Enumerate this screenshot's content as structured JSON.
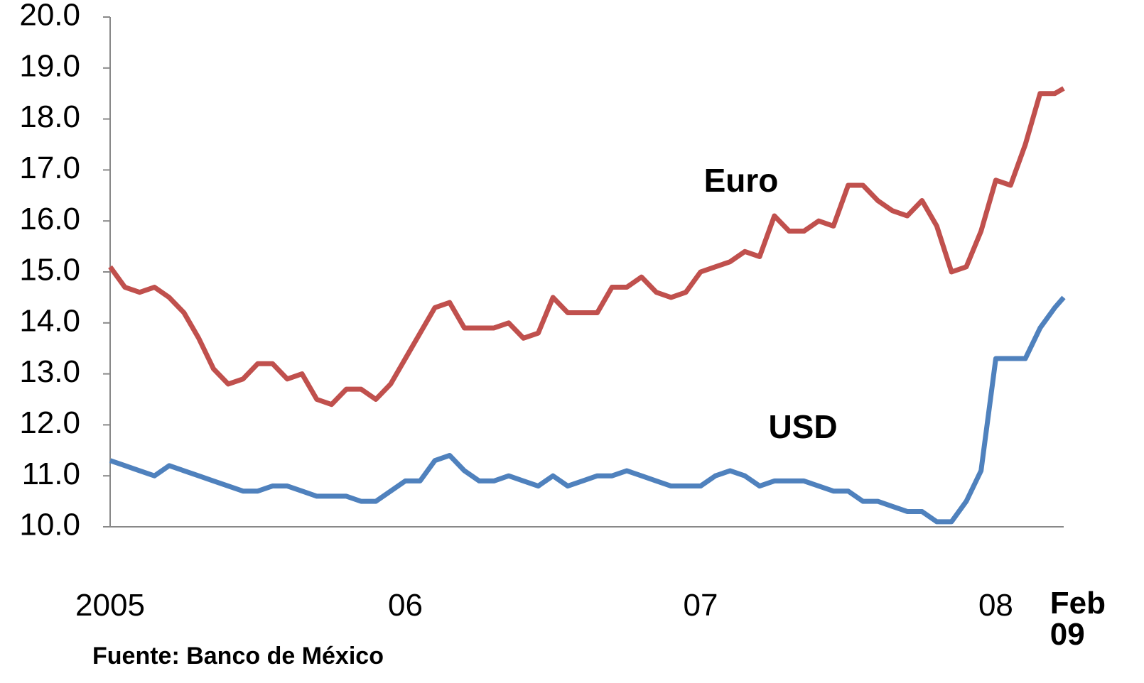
{
  "chart_data": {
    "type": "line",
    "x": [
      2005,
      2005.05,
      2005.1,
      2005.15,
      2005.2,
      2005.25,
      2005.3,
      2005.35,
      2005.4,
      2005.45,
      2005.5,
      2005.55,
      2005.6,
      2005.65,
      2005.7,
      2005.75,
      2005.8,
      2005.85,
      2005.9,
      2005.95,
      2006,
      2006.05,
      2006.1,
      2006.15,
      2006.2,
      2006.25,
      2006.3,
      2006.35,
      2006.4,
      2006.45,
      2006.5,
      2006.55,
      2006.6,
      2006.65,
      2006.7,
      2006.75,
      2006.8,
      2006.85,
      2006.9,
      2006.95,
      2007,
      2007.05,
      2007.1,
      2007.15,
      2007.2,
      2007.25,
      2007.3,
      2007.35,
      2007.4,
      2007.45,
      2007.5,
      2007.55,
      2007.6,
      2007.65,
      2007.7,
      2007.75,
      2007.8,
      2007.85,
      2007.9,
      2007.95,
      2008,
      2008.05,
      2008.1,
      2008.15,
      2008.2,
      2008.23
    ],
    "series": [
      {
        "name": "Euro",
        "color": "#c0504d",
        "values": [
          15.1,
          14.7,
          14.6,
          14.7,
          14.5,
          14.2,
          13.7,
          13.1,
          12.8,
          12.9,
          13.2,
          13.2,
          12.9,
          13.0,
          12.5,
          12.4,
          12.7,
          12.7,
          12.5,
          12.8,
          13.3,
          13.8,
          14.3,
          14.4,
          13.9,
          13.9,
          13.9,
          14.0,
          13.7,
          13.8,
          14.5,
          14.2,
          14.2,
          14.2,
          14.7,
          14.7,
          14.9,
          14.6,
          14.5,
          14.6,
          15.0,
          15.1,
          15.2,
          15.4,
          15.3,
          16.1,
          15.8,
          15.8,
          16.0,
          15.9,
          16.7,
          16.7,
          16.4,
          16.2,
          16.1,
          16.4,
          15.9,
          15.0,
          15.1,
          15.8,
          16.8,
          16.7,
          17.5,
          18.5,
          18.5,
          18.6
        ]
      },
      {
        "name": "USD",
        "color": "#4f81bd",
        "values": [
          11.3,
          11.2,
          11.1,
          11.0,
          11.2,
          11.1,
          11.0,
          10.9,
          10.8,
          10.7,
          10.7,
          10.8,
          10.8,
          10.7,
          10.6,
          10.6,
          10.6,
          10.5,
          10.5,
          10.7,
          10.9,
          10.9,
          11.3,
          11.4,
          11.1,
          10.9,
          10.9,
          11.0,
          10.9,
          10.8,
          11.0,
          10.8,
          10.9,
          11.0,
          11.0,
          11.1,
          11.0,
          10.9,
          10.8,
          10.8,
          10.8,
          11.0,
          11.1,
          11.0,
          10.8,
          10.9,
          10.9,
          10.9,
          10.8,
          10.7,
          10.7,
          10.5,
          10.5,
          10.4,
          10.3,
          10.3,
          10.1,
          10.1,
          10.5,
          11.1,
          13.3,
          13.3,
          13.3,
          13.9,
          14.3,
          14.5
        ]
      }
    ],
    "xlim": [
      2005,
      2008.23
    ],
    "xticks": [
      {
        "value": 2005,
        "label": "2005"
      },
      {
        "value": 2006,
        "label": "06"
      },
      {
        "value": 2007,
        "label": "07"
      },
      {
        "value": 2008,
        "label": "08"
      },
      {
        "value": 2008.28,
        "label": "Feb 09"
      }
    ],
    "ylim": [
      10,
      20
    ],
    "yticks": [
      {
        "value": 10,
        "label": "10.0"
      },
      {
        "value": 11,
        "label": "11.0"
      },
      {
        "value": 12,
        "label": "12.0"
      },
      {
        "value": 13,
        "label": "13.0"
      },
      {
        "value": 14,
        "label": "14.0"
      },
      {
        "value": 15,
        "label": "15.0"
      },
      {
        "value": 16,
        "label": "16.0"
      },
      {
        "value": 17,
        "label": "17.0"
      },
      {
        "value": 18,
        "label": "18.0"
      },
      {
        "value": 19,
        "label": "19.0"
      },
      {
        "value": 20,
        "label": "20.0"
      }
    ],
    "grid": false,
    "annotations": [
      "Fuente: Banco de México"
    ]
  }
}
